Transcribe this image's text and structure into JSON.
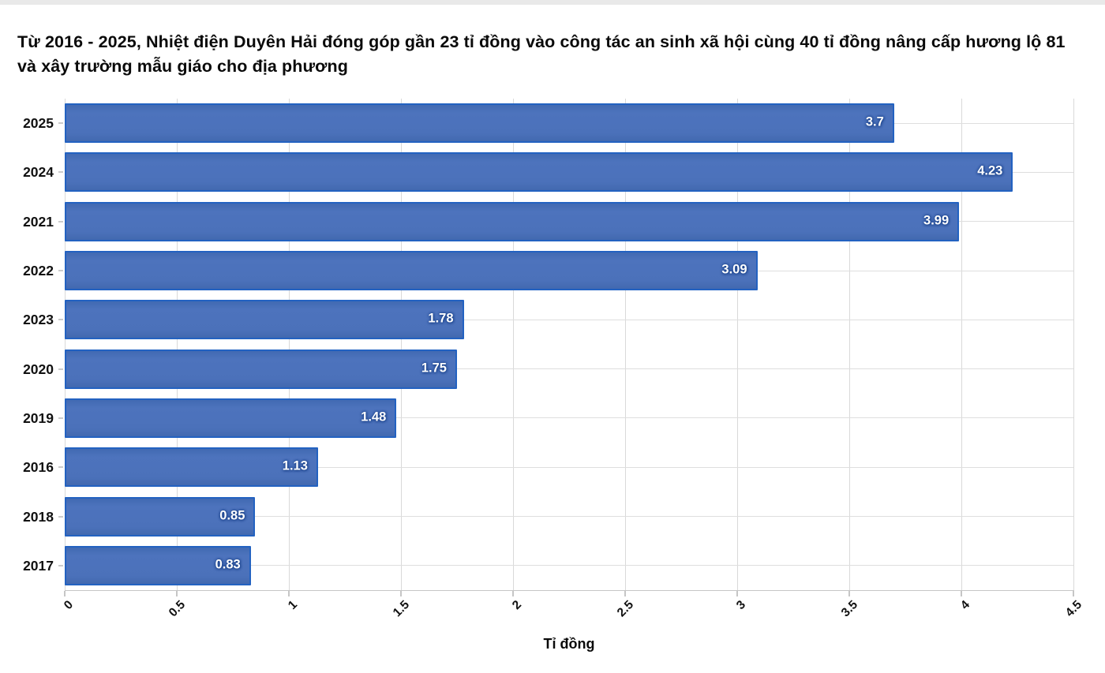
{
  "title": "Từ 2016 - 2025, Nhiệt điện Duyên Hải đóng góp gần 23 tỉ đồng vào công tác an sinh xã hội cùng 40 tỉ đồng nâng cấp hương lộ 81 và xây trường mẫu giáo cho địa phương",
  "chart_data": {
    "type": "bar",
    "orientation": "horizontal",
    "title": "Từ 2016 - 2025, Nhiệt điện Duyên Hải đóng góp gần 23 tỉ đồng vào công tác an sinh xã hội cùng 40 tỉ đồng nâng cấp hương lộ 81 và xây trường mẫu giáo cho địa phương",
    "categories": [
      "2025",
      "2024",
      "2021",
      "2022",
      "2023",
      "2020",
      "2019",
      "2016",
      "2018",
      "2017"
    ],
    "values": [
      3.7,
      4.23,
      3.99,
      3.09,
      1.78,
      1.75,
      1.48,
      1.13,
      0.85,
      0.83
    ],
    "value_labels": [
      "3.7",
      "4.23",
      "3.99",
      "3.09",
      "1.78",
      "1.75",
      "1.48",
      "1.13",
      "0.85",
      "0.83"
    ],
    "xlabel": "Tỉ đồng",
    "ylabel": "",
    "xlim": [
      0,
      4.5
    ],
    "x_ticks": [
      0,
      0.5,
      1,
      1.5,
      2,
      2.5,
      3,
      3.5,
      4,
      4.5
    ],
    "x_tick_labels": [
      "0",
      "0.5",
      "1",
      "1.5",
      "2",
      "2.5",
      "3",
      "3.5",
      "4",
      "4.5"
    ],
    "grid": true,
    "legend": false,
    "colors": {
      "bar_fill": "#4a70b8",
      "bar_border": "#2362c1",
      "value_text": "#ffffff",
      "gridline": "#d9d9d9",
      "axis_line": "#c6c6c6",
      "text": "#0a0a0a",
      "top_strip": "#e9e9e9"
    }
  }
}
